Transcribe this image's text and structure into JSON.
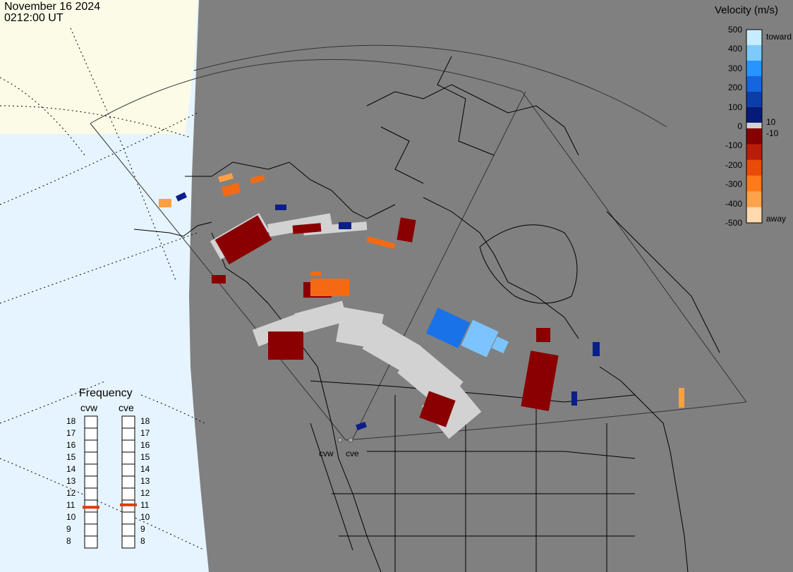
{
  "header": {
    "date": "November 16 2024",
    "time": "0212:00 UT"
  },
  "velocity_legend": {
    "title": "Velocity (m/s)",
    "ticks": [
      "500",
      "400",
      "300",
      "200",
      "100",
      "0",
      "-100",
      "-200",
      "-300",
      "-400",
      "-500"
    ],
    "toward_label": "toward",
    "away_label": "away",
    "pos_threshold": "10",
    "neg_threshold": "-10",
    "colors_toward": [
      "#bfe6ff",
      "#66c2ff",
      "#1f8fff",
      "#1060d8",
      "#0a3aa8",
      "#061a78"
    ],
    "colors_away": [
      "#ffd9b0",
      "#ffa24a",
      "#ff7a1a",
      "#e84c08",
      "#b81e0a",
      "#860000"
    ]
  },
  "frequency_panel": {
    "title": "Frequency",
    "radars": [
      {
        "name": "cvw",
        "frequency_mhz": 10.9
      },
      {
        "name": "cve",
        "frequency_mhz": 11.1
      }
    ],
    "scale": [
      "18",
      "17",
      "16",
      "15",
      "14",
      "13",
      "12",
      "11",
      "10",
      "9",
      "8"
    ],
    "marker_color": "#e03a10"
  },
  "map": {
    "land_color": "#808080",
    "ocean_color": "#e6f4ff",
    "arctic_color": "#fbfbe8",
    "data_colors": {
      "ground_scatter": "#d2d2d2",
      "low_away": "#8a0000",
      "orange": "#f46a14",
      "light_orange": "#ffa040",
      "blue": "#1a72e8",
      "light_blue": "#7cc4ff",
      "dark_blue": "#0b1f88"
    },
    "radar_labels": [
      "cvw",
      "cve"
    ]
  }
}
